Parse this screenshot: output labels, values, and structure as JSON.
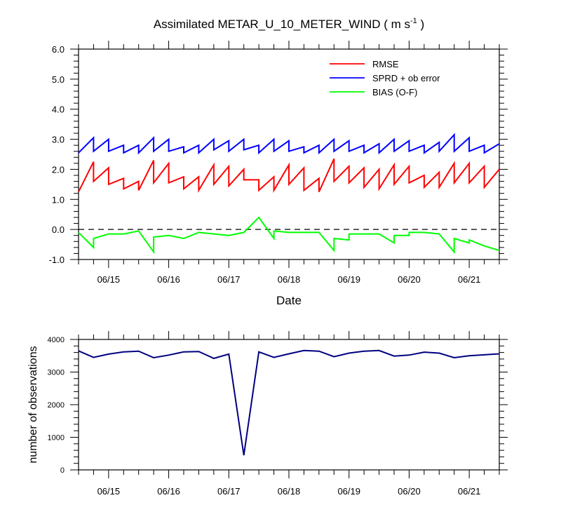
{
  "chart_data": [
    {
      "type": "line",
      "title": "Assimilated METAR_U_10_METER_WIND ( m s",
      "title_superscript": "-1",
      "title_suffix": " )",
      "xlabel": "Date",
      "ylabel": "",
      "ylim": [
        -1.0,
        6.0
      ],
      "xlim_days": [
        14.5,
        21.5
      ],
      "x_tick_labels": [
        "06/15",
        "06/16",
        "06/17",
        "06/18",
        "06/19",
        "06/20",
        "06/21"
      ],
      "y_tick_labels": [
        "-1.0",
        "0.0",
        "1.0",
        "2.0",
        "3.0",
        "4.0",
        "5.0",
        "6.0"
      ],
      "reference_line": {
        "y": 0.0,
        "style": "dashed"
      },
      "legend_position": "top-right",
      "series": [
        {
          "name": "RMSE",
          "color": "#ff0000",
          "x": [
            14.5,
            14.75,
            14.75,
            15.0,
            15.0,
            15.25,
            15.25,
            15.5,
            15.5,
            15.75,
            15.75,
            16.0,
            16.0,
            16.25,
            16.25,
            16.5,
            16.5,
            16.75,
            16.75,
            17.0,
            17.0,
            17.25,
            17.25,
            17.5,
            17.5,
            17.75,
            17.75,
            18.0,
            18.0,
            18.25,
            18.25,
            18.5,
            18.5,
            18.75,
            18.75,
            19.0,
            19.0,
            19.25,
            19.25,
            19.5,
            19.5,
            19.75,
            19.75,
            20.0,
            20.0,
            20.25,
            20.25,
            20.5,
            20.5,
            20.75,
            20.75,
            21.0,
            21.0,
            21.25,
            21.25,
            21.5
          ],
          "y": [
            1.25,
            2.25,
            1.6,
            2.05,
            1.5,
            1.7,
            1.35,
            1.6,
            1.3,
            2.3,
            1.55,
            2.2,
            1.55,
            1.75,
            1.35,
            1.75,
            1.3,
            2.15,
            1.5,
            2.1,
            1.45,
            2.0,
            1.65,
            1.65,
            1.3,
            1.75,
            1.3,
            2.15,
            1.5,
            2.05,
            1.3,
            1.7,
            1.25,
            2.35,
            1.6,
            2.1,
            1.55,
            2.05,
            1.4,
            2.0,
            1.35,
            2.15,
            1.5,
            2.1,
            1.55,
            1.8,
            1.4,
            1.9,
            1.4,
            2.2,
            1.55,
            2.2,
            1.55,
            2.1,
            1.4,
            2.0
          ]
        },
        {
          "name": "SPRD + ob error",
          "color": "#0000ff",
          "x": [
            14.5,
            14.75,
            14.75,
            15.0,
            15.0,
            15.25,
            15.25,
            15.5,
            15.5,
            15.75,
            15.75,
            16.0,
            16.0,
            16.25,
            16.25,
            16.5,
            16.5,
            16.75,
            16.75,
            17.0,
            17.0,
            17.25,
            17.25,
            17.5,
            17.5,
            17.75,
            17.75,
            18.0,
            18.0,
            18.25,
            18.25,
            18.5,
            18.5,
            18.75,
            18.75,
            19.0,
            19.0,
            19.25,
            19.25,
            19.5,
            19.5,
            19.75,
            19.75,
            20.0,
            20.0,
            20.25,
            20.25,
            20.5,
            20.5,
            20.75,
            20.75,
            21.0,
            21.0,
            21.25,
            21.25,
            21.5
          ],
          "y": [
            2.55,
            3.05,
            2.6,
            3.0,
            2.6,
            2.8,
            2.55,
            2.8,
            2.55,
            3.05,
            2.6,
            3.0,
            2.6,
            2.75,
            2.55,
            2.8,
            2.55,
            3.0,
            2.65,
            2.95,
            2.6,
            3.0,
            2.65,
            2.8,
            2.55,
            3.0,
            2.6,
            2.95,
            2.6,
            2.75,
            2.55,
            2.8,
            2.55,
            3.0,
            2.6,
            2.95,
            2.6,
            2.8,
            2.55,
            2.85,
            2.55,
            3.0,
            2.6,
            2.95,
            2.6,
            2.8,
            2.55,
            2.9,
            2.6,
            3.15,
            2.6,
            3.05,
            2.6,
            2.8,
            2.55,
            2.85
          ]
        },
        {
          "name": "BIAS (O-F)",
          "color": "#00ff00",
          "x": [
            14.5,
            14.75,
            14.75,
            15.0,
            15.25,
            15.5,
            15.75,
            15.75,
            16.0,
            16.25,
            16.5,
            16.75,
            17.0,
            17.25,
            17.5,
            17.75,
            17.75,
            18.0,
            18.25,
            18.5,
            18.75,
            18.75,
            19.0,
            19.0,
            19.25,
            19.5,
            19.75,
            19.75,
            20.0,
            20.0,
            20.25,
            20.5,
            20.75,
            20.75,
            21.0,
            21.0,
            21.25,
            21.5
          ],
          "y": [
            -0.1,
            -0.6,
            -0.3,
            -0.15,
            -0.15,
            -0.05,
            -0.75,
            -0.25,
            -0.2,
            -0.3,
            -0.1,
            -0.15,
            -0.2,
            -0.1,
            0.4,
            -0.3,
            -0.05,
            -0.1,
            -0.1,
            -0.1,
            -0.7,
            -0.3,
            -0.35,
            -0.15,
            -0.15,
            -0.15,
            -0.45,
            -0.2,
            -0.2,
            -0.1,
            -0.1,
            -0.15,
            -0.75,
            -0.3,
            -0.45,
            -0.35,
            -0.55,
            -0.7
          ]
        }
      ]
    },
    {
      "type": "line",
      "title": "",
      "xlabel": "",
      "ylabel": "number of observations",
      "ylim": [
        0,
        4000
      ],
      "xlim_days": [
        14.5,
        21.5
      ],
      "x_tick_labels": [
        "06/15",
        "06/16",
        "06/17",
        "06/18",
        "06/19",
        "06/20",
        "06/21"
      ],
      "y_tick_labels": [
        "0",
        "1000",
        "2000",
        "3000",
        "4000"
      ],
      "series": [
        {
          "color": "#000080",
          "x": [
            14.5,
            14.75,
            15.0,
            15.25,
            15.5,
            15.75,
            16.0,
            16.25,
            16.5,
            16.75,
            17.0,
            17.25,
            17.5,
            17.75,
            18.0,
            18.25,
            18.5,
            18.75,
            19.0,
            19.25,
            19.5,
            19.75,
            20.0,
            20.25,
            20.5,
            20.75,
            21.0,
            21.25,
            21.5
          ],
          "y": [
            3650,
            3450,
            3550,
            3620,
            3640,
            3440,
            3520,
            3620,
            3630,
            3420,
            3550,
            450,
            3620,
            3450,
            3560,
            3660,
            3640,
            3470,
            3580,
            3640,
            3660,
            3490,
            3520,
            3610,
            3580,
            3440,
            3500,
            3530,
            3560
          ]
        }
      ]
    }
  ]
}
